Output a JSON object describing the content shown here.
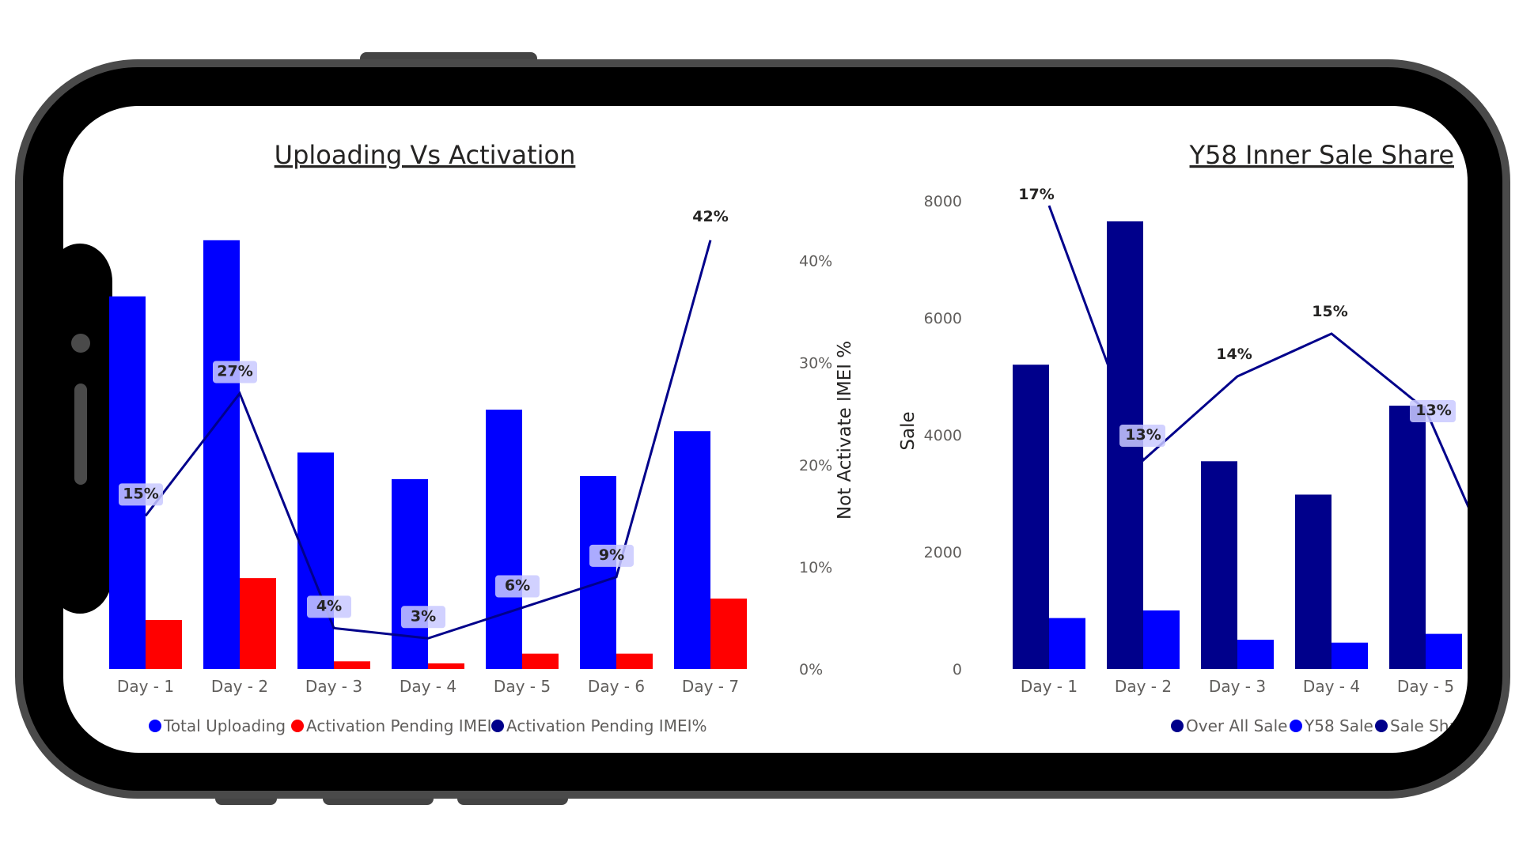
{
  "chart_data": [
    {
      "type": "bar",
      "title": "Uploading Vs Activation",
      "categories": [
        "Day - 1",
        "Day - 2",
        "Day - 3",
        "Day - 4",
        "Day - 5",
        "Day - 6",
        "Day - 7"
      ],
      "series": [
        {
          "name": "Total Uploading",
          "color": "#0000FF",
          "values": [
            3650,
            4200,
            2120,
            1860,
            2540,
            1890,
            2330
          ]
        },
        {
          "name": "Activation Pending IMEI",
          "color": "#FF0000",
          "values": [
            480,
            890,
            75,
            55,
            150,
            150,
            690
          ]
        }
      ],
      "line_series": {
        "name": "Activation Pending IMEI%",
        "color": "#00008B",
        "values": [
          15,
          27,
          4,
          3,
          6,
          9,
          42
        ],
        "labels": [
          "15%",
          "27%",
          "4%",
          "3%",
          "6%",
          "9%",
          "42%"
        ]
      },
      "ylim": [
        0,
        4400
      ],
      "y2lim": [
        0,
        44
      ],
      "y2ticks": [
        "0%",
        "10%",
        "20%",
        "30%",
        "40%"
      ],
      "y2label": "Not Activate IMEI %",
      "legend": "bottom"
    },
    {
      "type": "bar",
      "title": "Y58 Inner Sale Share",
      "categories": [
        "Day - 1",
        "Day - 2",
        "Day - 3",
        "Day - 4",
        "Day - 5"
      ],
      "series": [
        {
          "name": "Over All Sale",
          "color": "#00008B",
          "values": [
            5200,
            7650,
            3550,
            2980,
            4500
          ]
        },
        {
          "name": "Y58 Sale",
          "color": "#0000FF",
          "values": [
            870,
            1000,
            500,
            450,
            600
          ]
        }
      ],
      "line_series": {
        "name": "Sale Shar",
        "color": "#00008B",
        "values": [
          17,
          13,
          14,
          15,
          13
        ],
        "labels": [
          "17%",
          "13%",
          "14%",
          "15%",
          "13%"
        ]
      },
      "ylim": [
        0,
        8000
      ],
      "yticks": [
        "0",
        "2000",
        "4000",
        "6000",
        "8000"
      ],
      "ylabel": "Sale",
      "legend": "bottom"
    }
  ]
}
